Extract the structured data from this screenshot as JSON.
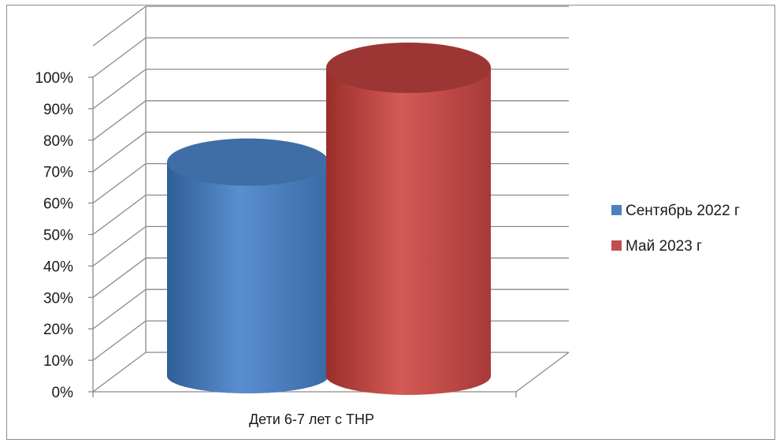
{
  "chart_data": {
    "type": "bar",
    "style": "3d-cylinder",
    "categories": [
      "Дети 6-7 лет с ТНР"
    ],
    "series": [
      {
        "name": "Сентябрь 2022 г",
        "values": [
          0.68
        ],
        "color": "#4f81bd"
      },
      {
        "name": "Май 2023 г",
        "values": [
          0.98
        ],
        "color": "#c0504d"
      }
    ],
    "y_ticks": [
      "0%",
      "10%",
      "20%",
      "30%",
      "40%",
      "50%",
      "60%",
      "70%",
      "80%",
      "90%",
      "100%"
    ],
    "ylim": [
      0,
      1
    ],
    "grid": true,
    "legend_position": "right",
    "title": "",
    "xlabel": "",
    "ylabel": ""
  }
}
